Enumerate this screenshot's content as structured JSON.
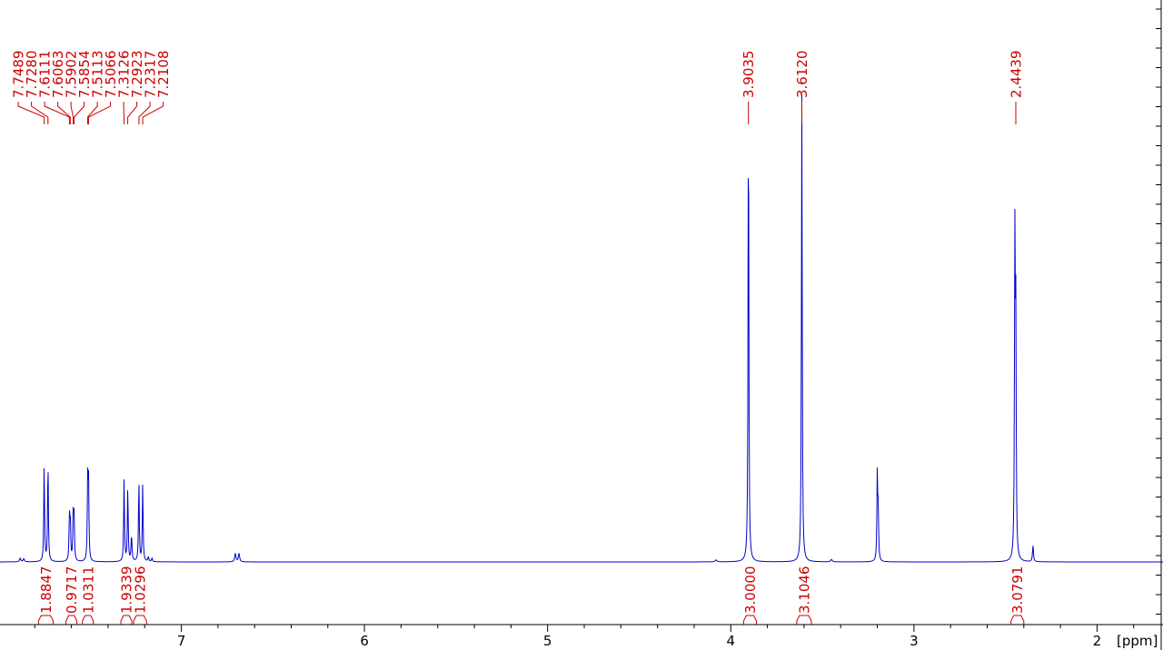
{
  "chart_data": {
    "type": "line",
    "xlabel": "[ppm]",
    "x_reversed": true,
    "xlim": [
      7.99,
      1.64
    ],
    "x_ticks": [
      7,
      6,
      5,
      4,
      3,
      2
    ],
    "x_tick_labels": [
      "7",
      "6",
      "5",
      "4",
      "3",
      "2"
    ],
    "peak_labels": [
      {
        "label": "7.7489",
        "ppm": 7.7489
      },
      {
        "label": "7.7280",
        "ppm": 7.728
      },
      {
        "label": "7.6111",
        "ppm": 7.6111
      },
      {
        "label": "7.6063",
        "ppm": 7.6063
      },
      {
        "label": "7.5902",
        "ppm": 7.5902
      },
      {
        "label": "7.5854",
        "ppm": 7.5854
      },
      {
        "label": "7.5113",
        "ppm": 7.5113
      },
      {
        "label": "7.5066",
        "ppm": 7.5066
      },
      {
        "label": "7.3126",
        "ppm": 7.3126
      },
      {
        "label": "7.2923",
        "ppm": 7.2923
      },
      {
        "label": "7.2317",
        "ppm": 7.2317
      },
      {
        "label": "7.2108",
        "ppm": 7.2108
      },
      {
        "label": "3.9035",
        "ppm": 3.9035
      },
      {
        "label": "3.6120",
        "ppm": 3.612
      },
      {
        "label": "2.4439",
        "ppm": 2.4439
      }
    ],
    "integrals": [
      {
        "label": "1.8847",
        "from": 7.78,
        "to": 7.7
      },
      {
        "label": "0.9717",
        "from": 7.63,
        "to": 7.57
      },
      {
        "label": "1.0311",
        "from": 7.54,
        "to": 7.48
      },
      {
        "label": "1.9339",
        "from": 7.33,
        "to": 7.27
      },
      {
        "label": "1.0296",
        "from": 7.26,
        "to": 7.19
      },
      {
        "label": "3.0000",
        "from": 3.93,
        "to": 3.86
      },
      {
        "label": "3.1046",
        "from": 3.64,
        "to": 3.56
      },
      {
        "label": "3.0791",
        "from": 2.47,
        "to": 2.4
      }
    ],
    "peaks": [
      {
        "ppm": 7.88,
        "h": 0.008,
        "w": 0.004
      },
      {
        "ppm": 7.86,
        "h": 0.007,
        "w": 0.004
      },
      {
        "ppm": 7.7489,
        "h": 0.205,
        "w": 0.0025
      },
      {
        "ppm": 7.728,
        "h": 0.215,
        "w": 0.0025
      },
      {
        "ppm": 7.6111,
        "h": 0.09,
        "w": 0.0025
      },
      {
        "ppm": 7.6063,
        "h": 0.085,
        "w": 0.0025
      },
      {
        "ppm": 7.5902,
        "h": 0.1,
        "w": 0.0025
      },
      {
        "ppm": 7.5854,
        "h": 0.09,
        "w": 0.0025
      },
      {
        "ppm": 7.5113,
        "h": 0.165,
        "w": 0.0025
      },
      {
        "ppm": 7.5066,
        "h": 0.165,
        "w": 0.0025
      },
      {
        "ppm": 7.3126,
        "h": 0.175,
        "w": 0.0025
      },
      {
        "ppm": 7.2923,
        "h": 0.16,
        "w": 0.0025
      },
      {
        "ppm": 7.272,
        "h": 0.055,
        "w": 0.003
      },
      {
        "ppm": 7.2317,
        "h": 0.175,
        "w": 0.0025
      },
      {
        "ppm": 7.2108,
        "h": 0.165,
        "w": 0.0025
      },
      {
        "ppm": 7.18,
        "h": 0.01,
        "w": 0.003
      },
      {
        "ppm": 7.16,
        "h": 0.008,
        "w": 0.003
      },
      {
        "ppm": 6.705,
        "h": 0.018,
        "w": 0.004
      },
      {
        "ppm": 6.685,
        "h": 0.018,
        "w": 0.004
      },
      {
        "ppm": 4.08,
        "h": 0.004,
        "w": 0.006
      },
      {
        "ppm": 3.9035,
        "h": 1.0,
        "w": 0.0025
      },
      {
        "ppm": 3.612,
        "h": 1.0,
        "w": 0.0025
      },
      {
        "ppm": 3.45,
        "h": 0.005,
        "w": 0.005
      },
      {
        "ppm": 3.2,
        "h": 0.185,
        "w": 0.0025
      },
      {
        "ppm": 3.195,
        "h": 0.1,
        "w": 0.0025
      },
      {
        "ppm": 2.449,
        "h": 0.66,
        "w": 0.0025
      },
      {
        "ppm": 2.4439,
        "h": 0.5,
        "w": 0.0025
      },
      {
        "ppm": 2.35,
        "h": 0.035,
        "w": 0.003
      }
    ],
    "colors": {
      "spectrum": "#0000cc",
      "annotation": "#cc0000",
      "axis": "#000000"
    }
  }
}
